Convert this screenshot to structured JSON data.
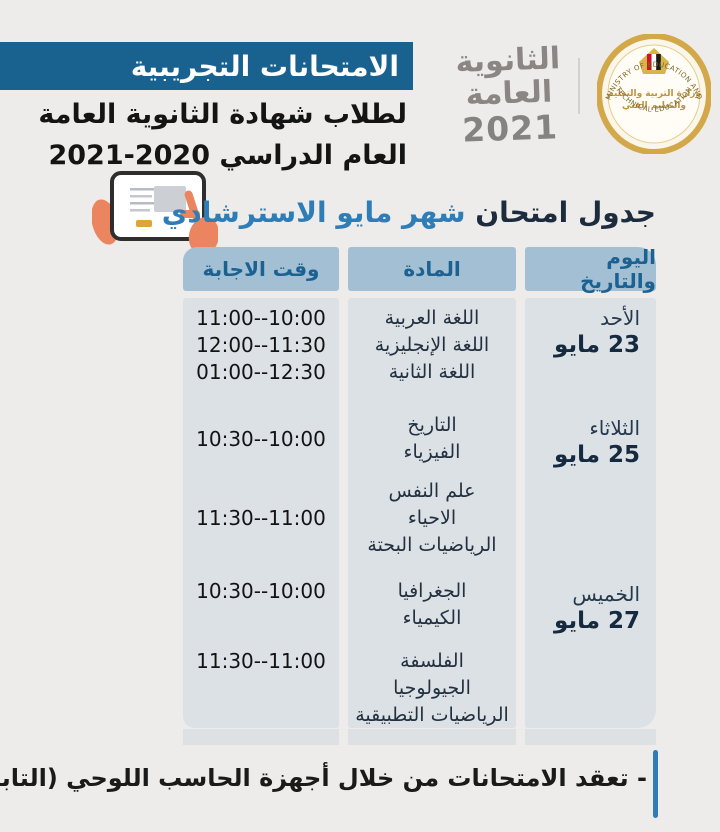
{
  "banner": {
    "title": "الامتحانات التجريبية"
  },
  "subtitle": {
    "line1": "لطلاب شهادة الثانوية العامة",
    "line2": "العام الدراسي 2020-2021"
  },
  "logos": {
    "thanaweya": {
      "word1": "الثانوية",
      "word2": "العامة",
      "year": "2021"
    },
    "ministry": {
      "arc_top": "MINISTRY OF EDUCATION AND",
      "arc_bottom": "TECHNICAL EDUCATION",
      "center_line1": "وزارة التربية والتعليم",
      "center_line2": "والتعليم الفني"
    }
  },
  "section_title": {
    "prefix": "جدول امتحان",
    "highlight": "شهر مايو الاسترشادي"
  },
  "table": {
    "headers": {
      "day": "اليوم والتاريخ",
      "subject": "المادة",
      "time": "وقت الاجابة"
    },
    "rows": [
      {
        "day": "الأحد",
        "date": "23 مايو",
        "groups": [
          {
            "subjects": [
              "اللغة العربية",
              "اللغة الإنجليزية",
              "اللغة الثانية"
            ],
            "times": [
              "11:00--10:00",
              "12:00--11:30",
              "01:00--12:30"
            ]
          }
        ]
      },
      {
        "day": "الثلاثاء",
        "date": "25 مايو",
        "groups": [
          {
            "subjects": [
              "التاريخ",
              "الفيزياء"
            ],
            "times": [
              "10:30--10:00"
            ]
          },
          {
            "subjects": [
              "علم النفس",
              "الاحياء",
              "الرياضيات البحتة"
            ],
            "times": [
              "11:30--11:00"
            ]
          }
        ]
      },
      {
        "day": "الخميس",
        "date": "27 مايو",
        "groups": [
          {
            "subjects": [
              "الجغرافيا",
              "الكيمياء"
            ],
            "times": [
              "10:30--10:00"
            ]
          },
          {
            "subjects": [
              "الفلسفة",
              "الجيولوجيا",
              "الرياضيات التطبيقية"
            ],
            "times": [
              "11:30--11:00"
            ]
          }
        ]
      }
    ]
  },
  "footer": {
    "note": "- تعقد الامتحانات من خلال أجهزة الحاسب اللوحي (التابلت)"
  },
  "colors": {
    "banner_bg": "#19618e",
    "header_cell_bg": "#a3bfd3",
    "header_cell_text": "#1b6191",
    "panel_bg": "#dce1e6",
    "accent_blue": "#2f7db6",
    "gold": "#d3a84b"
  }
}
